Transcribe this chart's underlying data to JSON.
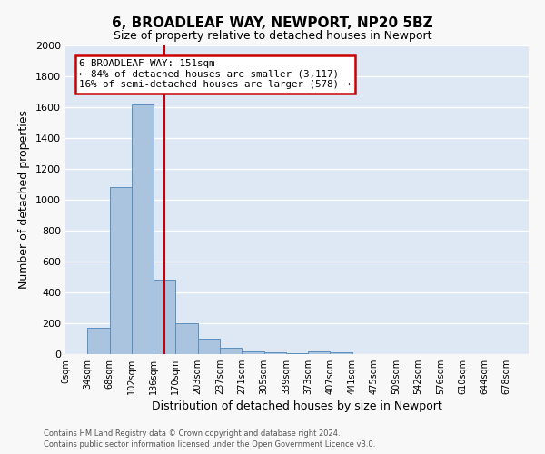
{
  "title": "6, BROADLEAF WAY, NEWPORT, NP20 5BZ",
  "subtitle": "Size of property relative to detached houses in Newport",
  "xlabel": "Distribution of detached houses by size in Newport",
  "ylabel": "Number of detached properties",
  "bar_labels": [
    "0sqm",
    "34sqm",
    "68sqm",
    "102sqm",
    "136sqm",
    "170sqm",
    "203sqm",
    "237sqm",
    "271sqm",
    "305sqm",
    "339sqm",
    "373sqm",
    "407sqm",
    "441sqm",
    "475sqm",
    "509sqm",
    "542sqm",
    "576sqm",
    "610sqm",
    "644sqm",
    "678sqm"
  ],
  "bar_values": [
    0,
    170,
    1080,
    1620,
    480,
    200,
    100,
    40,
    18,
    10,
    5,
    20,
    10,
    0,
    0,
    0,
    0,
    0,
    0,
    0,
    0
  ],
  "bar_color": "#aac4e0",
  "bar_edge_color": "#5a8fc0",
  "vline_x": 4.5,
  "vline_color": "#cc0000",
  "annotation_text": "6 BROADLEAF WAY: 151sqm\n← 84% of detached houses are smaller (3,117)\n16% of semi-detached houses are larger (578) →",
  "annotation_box_color": "#ffffff",
  "annotation_border_color": "#cc0000",
  "ylim": [
    0,
    2000
  ],
  "yticks": [
    0,
    200,
    400,
    600,
    800,
    1000,
    1200,
    1400,
    1600,
    1800,
    2000
  ],
  "bg_color": "#dde8f4",
  "grid_color": "#ffffff",
  "footer_line1": "Contains HM Land Registry data © Crown copyright and database right 2024.",
  "footer_line2": "Contains public sector information licensed under the Open Government Licence v3.0."
}
